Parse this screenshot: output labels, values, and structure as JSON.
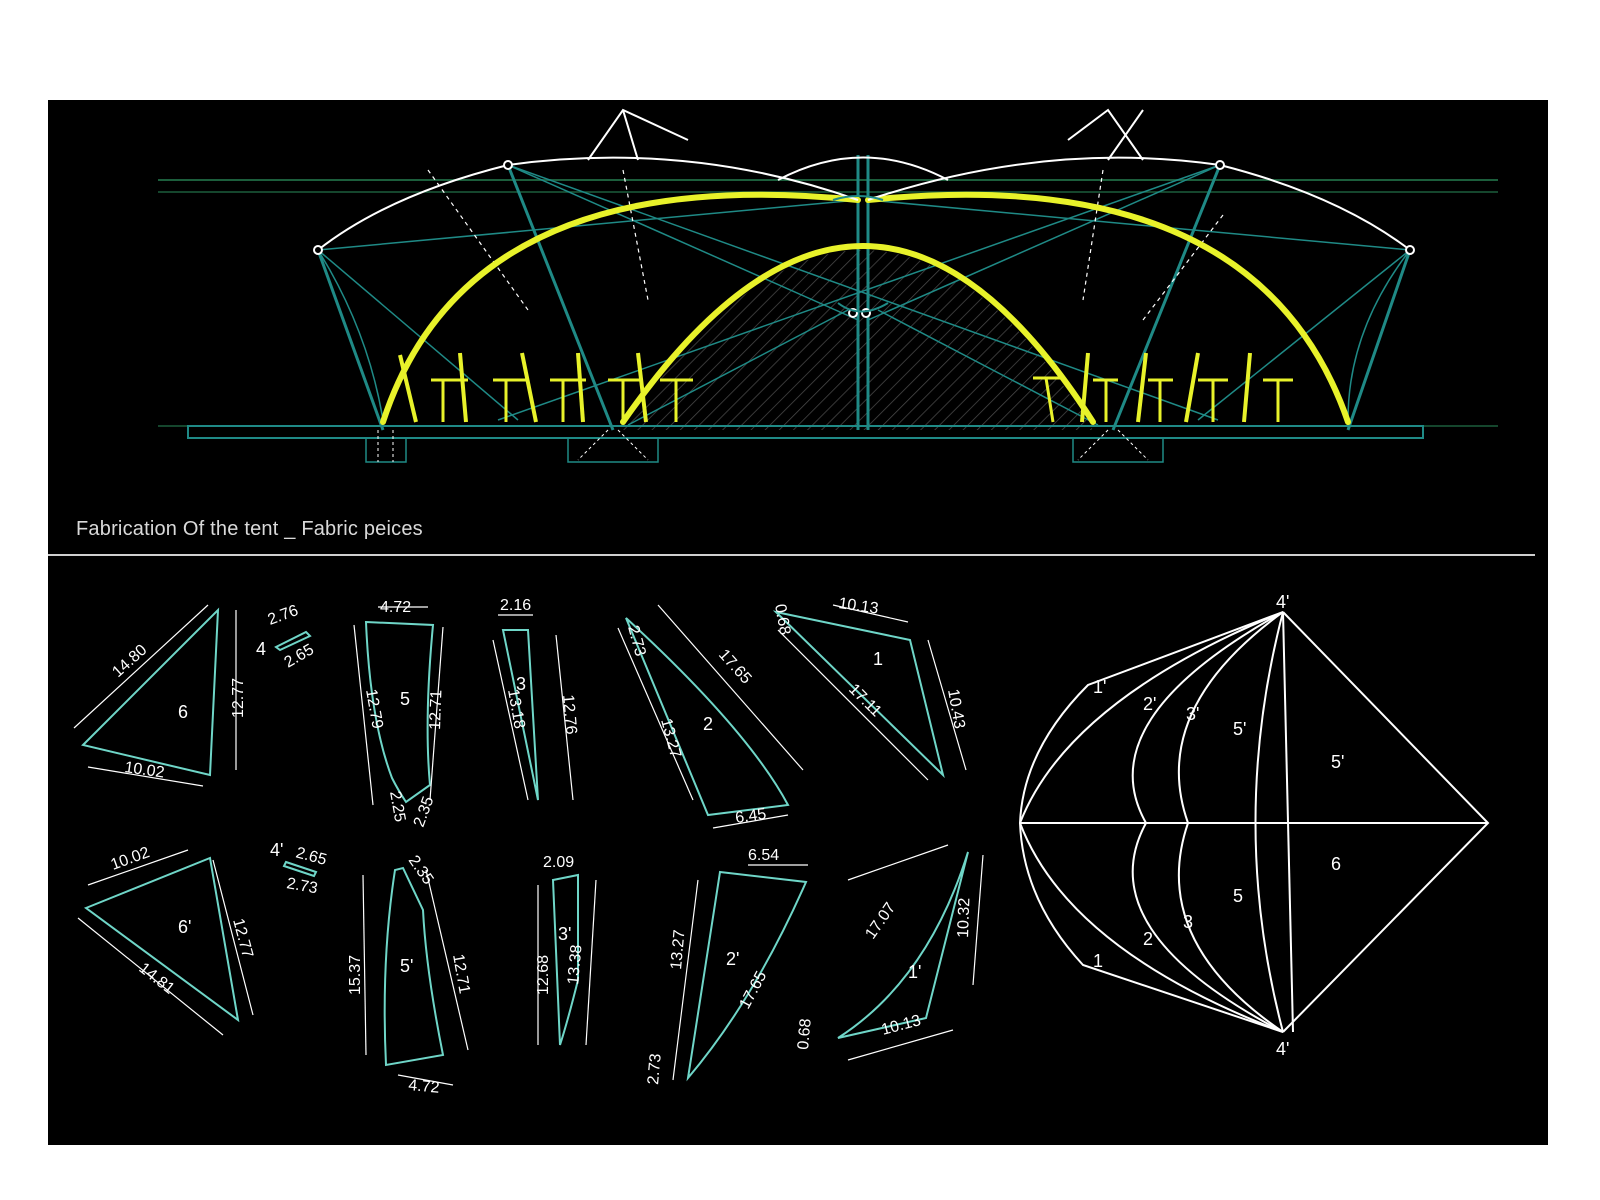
{
  "title": "Fabrication Of the tent _ Fabric peices",
  "colors": {
    "background": "#000000",
    "frame": "#1f8a86",
    "arches": "#e8f22a",
    "membrane": "#ffffff",
    "pattern": "#6fd6c8"
  },
  "pieces": {
    "p6": {
      "label": "6",
      "d": [
        "14.80",
        "12.77",
        "10.02"
      ]
    },
    "p4": {
      "label": "4",
      "d": [
        "2.76",
        "2.65"
      ]
    },
    "p5": {
      "label": "5",
      "d": [
        "4.72",
        "12.79",
        "12.71",
        "2.25",
        "2.35"
      ]
    },
    "p3": {
      "label": "3",
      "d": [
        "2.16",
        "13.18",
        "12.76"
      ]
    },
    "p2": {
      "label": "2",
      "d": [
        "2.73",
        "17.65",
        "13.27",
        "6.45"
      ]
    },
    "p1": {
      "label": "1",
      "d": [
        "0.68",
        "10.13",
        "17.11",
        "10.43"
      ]
    },
    "p6b": {
      "label": "6'",
      "d": [
        "10.02",
        "12.77",
        "14.81"
      ]
    },
    "p4b": {
      "label": "4'",
      "d": [
        "2.65",
        "2.73"
      ]
    },
    "p5b": {
      "label": "5'",
      "d": [
        "2.35",
        "15.37",
        "12.71",
        "4.72"
      ]
    },
    "p3b": {
      "label": "3'",
      "d": [
        "2.09",
        "12.68",
        "13.38"
      ]
    },
    "p2b": {
      "label": "2'",
      "d": [
        "6.54",
        "13.27",
        "17.65",
        "2.73"
      ]
    },
    "p1b": {
      "label": "1'",
      "d": [
        "17.07",
        "10.32",
        "10.13",
        "0.68"
      ]
    }
  },
  "assembly": {
    "top": "4'",
    "bottom": "4'",
    "upper": [
      "1'",
      "2'",
      "3'",
      "5'",
      "5'"
    ],
    "lower": [
      "1",
      "2",
      "3",
      "5",
      "6"
    ]
  }
}
